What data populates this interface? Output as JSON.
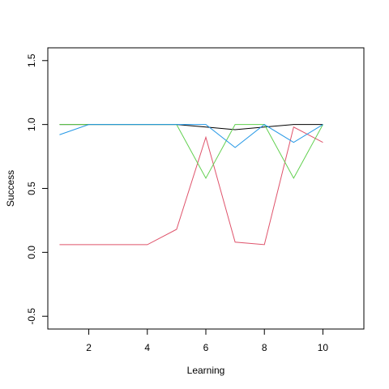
{
  "chart_data": {
    "type": "line",
    "title": "",
    "xlabel": "Learning",
    "ylabel": "Success",
    "xlim": [
      0.6,
      11.4
    ],
    "ylim": [
      -0.6,
      1.6
    ],
    "x_ticks": [
      2,
      4,
      6,
      8,
      10
    ],
    "y_ticks": [
      -0.5,
      0.0,
      0.5,
      1.0,
      1.5
    ],
    "x_tick_labels": [
      "2",
      "4",
      "6",
      "8",
      "10"
    ],
    "y_tick_labels": [
      "-0.5",
      "0.0",
      "0.5",
      "1.0",
      "1.5"
    ],
    "grid": false,
    "legend": "none",
    "x": [
      1,
      2,
      3,
      4,
      5,
      6,
      7,
      8,
      9,
      10
    ],
    "series": [
      {
        "color": "#000000",
        "values": [
          1.0,
          1.0,
          1.0,
          1.0,
          1.0,
          0.98,
          0.96,
          0.98,
          1.0,
          1.0
        ]
      },
      {
        "color": "#df536b",
        "values": [
          0.06,
          0.06,
          0.06,
          0.06,
          0.18,
          0.9,
          0.08,
          0.06,
          0.98,
          0.86
        ]
      },
      {
        "color": "#61d04f",
        "values": [
          1.0,
          1.0,
          1.0,
          1.0,
          1.0,
          0.58,
          1.0,
          1.0,
          0.58,
          1.0
        ]
      },
      {
        "color": "#2297e6",
        "values": [
          0.92,
          1.0,
          1.0,
          1.0,
          1.0,
          1.0,
          0.82,
          1.0,
          0.86,
          1.0
        ]
      }
    ]
  }
}
